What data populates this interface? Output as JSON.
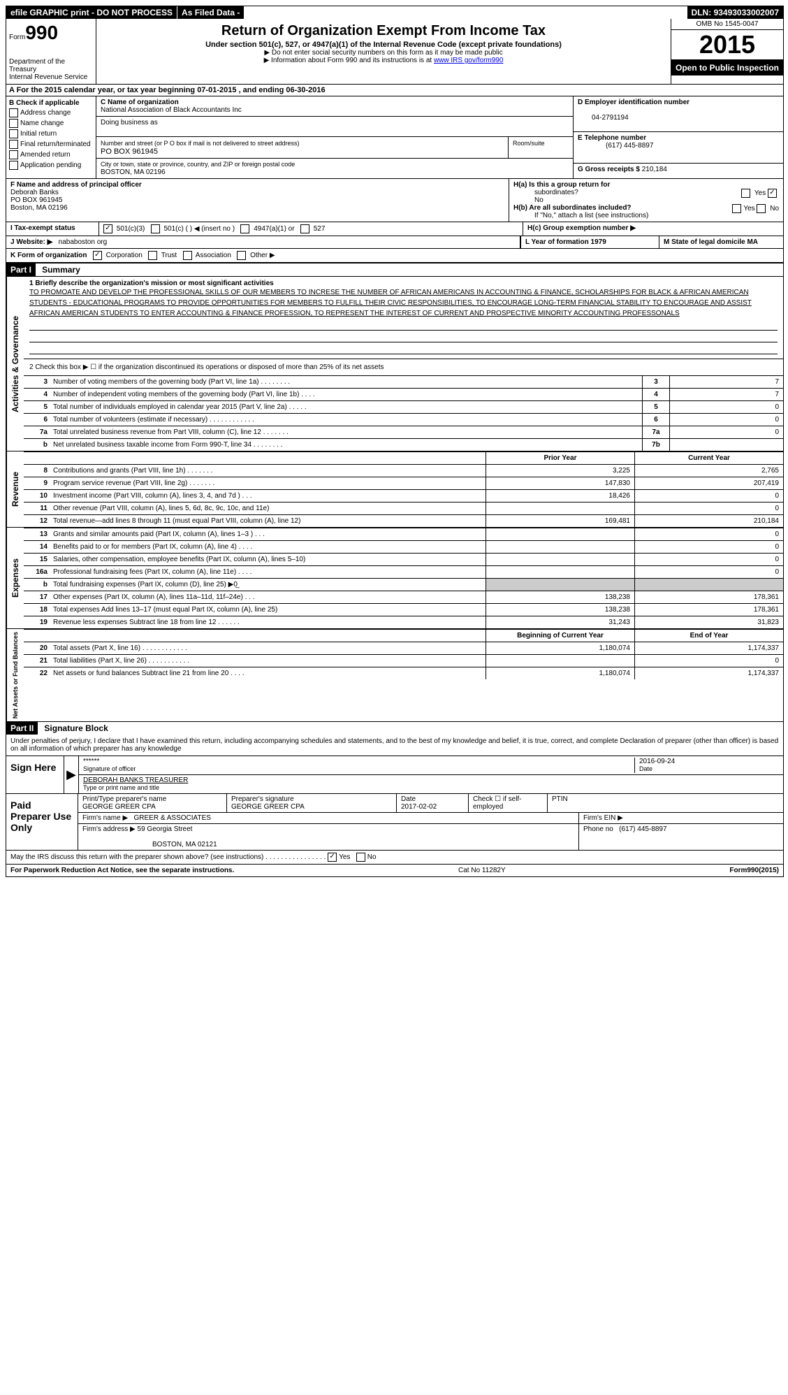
{
  "topbar": {
    "efile": "efile GRAPHIC print - DO NOT PROCESS",
    "asfiled": "As Filed Data -",
    "dln_label": "DLN:",
    "dln": "93493033002007"
  },
  "header": {
    "form_label": "Form",
    "form_num": "990",
    "dept": "Department of the Treasury",
    "irs": "Internal Revenue Service",
    "title": "Return of Organization Exempt From Income Tax",
    "subtitle": "Under section 501(c), 527, or 4947(a)(1) of the Internal Revenue Code (except private foundations)",
    "note1": "▶ Do not enter social security numbers on this form as it may be made public",
    "note2": "▶ Information about Form 990 and its instructions is at ",
    "note2_link": "www IRS gov/form990",
    "omb": "OMB No 1545-0047",
    "year": "2015",
    "inspection": "Open to Public Inspection"
  },
  "row_a": "A  For the 2015 calendar year, or tax year beginning 07-01-2015    , and ending 06-30-2016",
  "section_b": {
    "header": "B Check if applicable",
    "items": [
      "Address change",
      "Name change",
      "Initial return",
      "Final return/terminated",
      "Amended return",
      "Application pending"
    ]
  },
  "section_c": {
    "name_label": "C Name of organization",
    "name": "National Association of Black Accountants Inc",
    "dba_label": "Doing business as",
    "street_label": "Number and street (or P O  box if mail is not delivered to street address)",
    "room_label": "Room/suite",
    "street": "PO BOX 961945",
    "city_label": "City or town, state or province, country, and ZIP or foreign postal code",
    "city": "BOSTON, MA  02196"
  },
  "section_d": {
    "label": "D Employer identification number",
    "value": "04-2791194"
  },
  "section_e": {
    "label": "E Telephone number",
    "value": "(617) 445-8897"
  },
  "section_g": {
    "label": "G Gross receipts $",
    "value": "210,184"
  },
  "section_f": {
    "label": "F  Name and address of principal officer",
    "name": "Deborah Banks",
    "street": "PO BOX 961945",
    "city": "Boston, MA  02196"
  },
  "section_h": {
    "ha_label": "H(a)  Is this a group return for",
    "ha_sub": "subordinates?",
    "ha_ans": "No",
    "hb_label": "H(b) Are all subordinates included?",
    "hb_note": "If \"No,\" attach a list  (see instructions)",
    "hc_label": "H(c)   Group exemption number ▶"
  },
  "row_i": {
    "label": "I  Tax-exempt status",
    "opts": [
      "501(c)(3)",
      "501(c) (  ) ◀ (insert no )",
      "4947(a)(1) or",
      "527"
    ]
  },
  "row_j": {
    "label": "J  Website: ▶",
    "value": "nababoston org"
  },
  "row_k": {
    "label": "K Form of organization",
    "opts": [
      "Corporation",
      "Trust",
      "Association",
      "Other ▶"
    ]
  },
  "row_l": "L Year of formation  1979",
  "row_m": "M State of legal domicile   MA",
  "part1": {
    "header": "Part I",
    "title": "Summary",
    "mission_label": "1 Briefly describe the organization's mission or most significant activities",
    "mission": "TO PROMOATE AND DEVELOP THE PROFESSIONAL SKILLS OF OUR MEMBERS  TO INCRESE THE NUMBER OF AFRICAN AMERICANS IN ACCOUNTING & FINANCE, SCHOLARSHIPS FOR BLACK & AFRICAN AMERICAN STUDENTS - EDUCATIONAL PROGRAMS TO PROVIDE OPPORTUNITIES FOR MEMBERS TO FULFILL THEIR CIVIC RESPONSIBILITIES, TO ENCOURAGE LONG-TERM FINANCIAL STABILITY TO ENCOURAGE AND ASSIST AFRICAN AMERICAN STUDENTS TO ENTER ACCOUNTING & FINANCE PROFESSION, TO REPRESENT THE INTEREST OF CURRENT AND PROSPECTIVE MINORITY ACCOUNTING PROFESSONALS",
    "line2": "2  Check this box ▶ ☐ if the organization discontinued its operations or disposed of more than 25% of its net assets",
    "lines_single": [
      {
        "num": "3",
        "desc": "Number of voting members of the governing body (Part VI, line 1a)  .   .   .   .   .   .   .   .",
        "box": "3",
        "val": "7"
      },
      {
        "num": "4",
        "desc": "Number of independent voting members of the governing body (Part VI, line 1b)   .   .   .   .",
        "box": "4",
        "val": "7"
      },
      {
        "num": "5",
        "desc": "Total number of individuals employed in calendar year 2015 (Part V, line 2a)   .   .   .   .   .",
        "box": "5",
        "val": "0"
      },
      {
        "num": "6",
        "desc": "Total number of volunteers (estimate if necessary)   .   .   .   .   .   .   .   .   .   .   .   .",
        "box": "6",
        "val": "0"
      },
      {
        "num": "7a",
        "desc": "Total unrelated business revenue from Part VIII, column (C), line 12   .   .   .   .   .   .   .",
        "box": "7a",
        "val": "0"
      },
      {
        "num": "b",
        "desc": "Net unrelated business taxable income from Form 990-T, line 34   .   .   .   .   .   .   .   .",
        "box": "7b",
        "val": ""
      }
    ],
    "col_headers_1": [
      "Prior Year",
      "Current Year"
    ],
    "revenue_lines": [
      {
        "num": "8",
        "desc": "Contributions and grants (Part VIII, line 1h)   .   .   .   .   .   .   .",
        "v1": "3,225",
        "v2": "2,765"
      },
      {
        "num": "9",
        "desc": "Program service revenue (Part VIII, line 2g)   .   .   .   .   .   .   .",
        "v1": "147,830",
        "v2": "207,419"
      },
      {
        "num": "10",
        "desc": "Investment income (Part VIII, column (A), lines 3, 4, and 7d )   .   .   .",
        "v1": "18,426",
        "v2": "0"
      },
      {
        "num": "11",
        "desc": "Other revenue (Part VIII, column (A), lines 5, 6d, 8c, 9c, 10c, and 11e)",
        "v1": "",
        "v2": "0"
      },
      {
        "num": "12",
        "desc": "Total revenue—add lines 8 through 11 (must equal Part VIII, column (A), line 12)",
        "v1": "169,481",
        "v2": "210,184"
      }
    ],
    "expense_lines": [
      {
        "num": "13",
        "desc": "Grants and similar amounts paid (Part IX, column (A), lines 1–3 )   .   .   .",
        "v1": "",
        "v2": "0"
      },
      {
        "num": "14",
        "desc": "Benefits paid to or for members (Part IX, column (A), line 4)   .   .   .   .",
        "v1": "",
        "v2": "0"
      },
      {
        "num": "15",
        "desc": "Salaries, other compensation, employee benefits (Part IX, column (A), lines 5–10)",
        "v1": "",
        "v2": "0"
      },
      {
        "num": "16a",
        "desc": "Professional fundraising fees (Part IX, column (A), line 11e)   .   .   .   .",
        "v1": "",
        "v2": "0"
      },
      {
        "num": "b",
        "desc": "Total fundraising expenses (Part IX, column (D), line 25) ▶0̲",
        "v1": "",
        "v2": "",
        "nobox": true
      },
      {
        "num": "17",
        "desc": "Other expenses (Part IX, column (A), lines 11a–11d, 11f–24e)   .   .   .",
        "v1": "138,238",
        "v2": "178,361"
      },
      {
        "num": "18",
        "desc": "Total expenses  Add lines 13–17 (must equal Part IX, column (A), line 25)",
        "v1": "138,238",
        "v2": "178,361"
      },
      {
        "num": "19",
        "desc": "Revenue less expenses  Subtract line 18 from line 12   .   .   .   .   .   .",
        "v1": "31,243",
        "v2": "31,823"
      }
    ],
    "col_headers_2": [
      "Beginning of Current Year",
      "End of Year"
    ],
    "netassets_lines": [
      {
        "num": "20",
        "desc": "Total assets (Part X, line 16)   .   .   .   .   .   .   .   .   .   .   .   .",
        "v1": "1,180,074",
        "v2": "1,174,337"
      },
      {
        "num": "21",
        "desc": "Total liabilities (Part X, line 26)   .   .   .   .   .   .   .   .   .   .   .",
        "v1": "",
        "v2": "0"
      },
      {
        "num": "22",
        "desc": "Net assets or fund balances  Subtract line 21 from line 20   .   .   .   .",
        "v1": "1,180,074",
        "v2": "1,174,337"
      }
    ]
  },
  "vert_labels": {
    "activities": "Activities & Governance",
    "revenue": "Revenue",
    "expenses": "Expenses",
    "netassets": "Net Assets or Fund Balances"
  },
  "part2": {
    "header": "Part II",
    "title": "Signature Block",
    "declare": "Under penalties of perjury, I declare that I have examined this return, including accompanying schedules and statements, and to the best of my knowledge and belief, it is true, correct, and complete  Declaration of preparer (other than officer) is based on all information of which preparer has any knowledge",
    "sign_here": "Sign Here",
    "sig_stars": "******",
    "sig_officer_label": "Signature of officer",
    "sig_date": "2016-09-24",
    "sig_date_label": "Date",
    "sig_name": "DEBORAH BANKS TREASURER",
    "sig_name_label": "Type or print name and title",
    "paid_label": "Paid Preparer Use Only",
    "prep_name_label": "Print/Type preparer's name",
    "prep_name": "GEORGE GREER CPA",
    "prep_sig_label": "Preparer's signature",
    "prep_sig": "GEORGE GREER CPA",
    "prep_date_label": "Date",
    "prep_date": "2017-02-02",
    "prep_self": "Check ☐ if self-employed",
    "ptin_label": "PTIN",
    "firm_name_label": "Firm's name     ▶",
    "firm_name": "GREER & ASSOCIATES",
    "firm_ein_label": "Firm's EIN ▶",
    "firm_addr_label": "Firm's address ▶",
    "firm_addr": "59 Georgia Street",
    "firm_city": "BOSTON, MA  02121",
    "firm_phone_label": "Phone no",
    "firm_phone": "(617) 445-8897",
    "discuss": "May the IRS discuss this return with the preparer shown above? (see instructions)   .   .   .   .   .   .   .   .   .   .   .   .   .   .   .   .",
    "discuss_yes": "Yes",
    "discuss_no": "No"
  },
  "footer": {
    "left": "For Paperwork Reduction Act Notice, see the separate instructions.",
    "mid": "Cat No 11282Y",
    "right": "Form990(2015)"
  }
}
